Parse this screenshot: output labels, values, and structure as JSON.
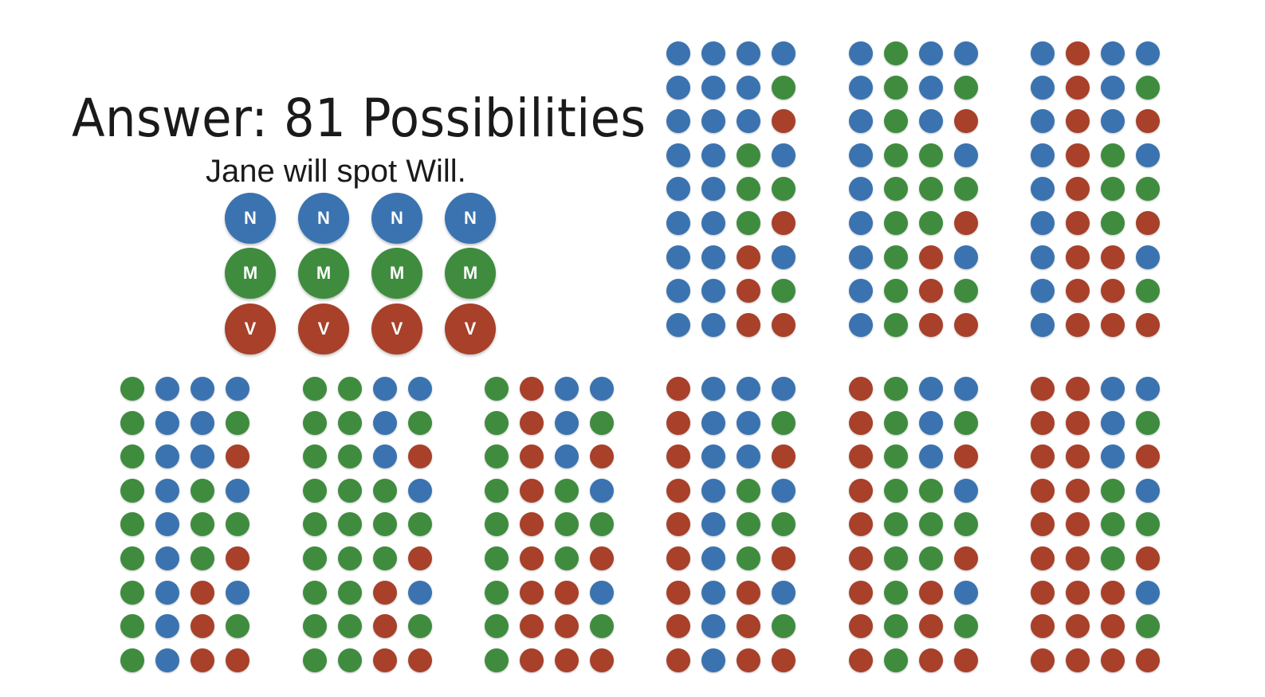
{
  "title": "Answer: 81 Possibilities",
  "subtitle": "Jane will spot Will.",
  "colors": {
    "N": "#3a73b0",
    "M": "#3f8c3f",
    "V": "#a8402a"
  },
  "legend": {
    "rows": [
      [
        "N",
        "N",
        "N",
        "N"
      ],
      [
        "M",
        "M",
        "M",
        "M"
      ],
      [
        "V",
        "V",
        "V",
        "V"
      ]
    ]
  },
  "combination_groups": [
    {
      "prefix": [
        "N",
        "N"
      ],
      "rows": [
        [
          "N",
          "N"
        ],
        [
          "N",
          "M"
        ],
        [
          "N",
          "V"
        ],
        [
          "M",
          "N"
        ],
        [
          "M",
          "M"
        ],
        [
          "M",
          "V"
        ],
        [
          "V",
          "N"
        ],
        [
          "V",
          "M"
        ],
        [
          "V",
          "V"
        ]
      ]
    },
    {
      "prefix": [
        "N",
        "M"
      ],
      "rows": [
        [
          "N",
          "N"
        ],
        [
          "N",
          "M"
        ],
        [
          "N",
          "V"
        ],
        [
          "M",
          "N"
        ],
        [
          "M",
          "M"
        ],
        [
          "M",
          "V"
        ],
        [
          "V",
          "N"
        ],
        [
          "V",
          "M"
        ],
        [
          "V",
          "V"
        ]
      ]
    },
    {
      "prefix": [
        "N",
        "V"
      ],
      "rows": [
        [
          "N",
          "N"
        ],
        [
          "N",
          "M"
        ],
        [
          "N",
          "V"
        ],
        [
          "M",
          "N"
        ],
        [
          "M",
          "M"
        ],
        [
          "M",
          "V"
        ],
        [
          "V",
          "N"
        ],
        [
          "V",
          "M"
        ],
        [
          "V",
          "V"
        ]
      ]
    },
    {
      "prefix": [
        "M",
        "N"
      ],
      "rows": [
        [
          "N",
          "N"
        ],
        [
          "N",
          "M"
        ],
        [
          "N",
          "V"
        ],
        [
          "M",
          "N"
        ],
        [
          "M",
          "M"
        ],
        [
          "M",
          "V"
        ],
        [
          "V",
          "N"
        ],
        [
          "V",
          "M"
        ],
        [
          "V",
          "V"
        ]
      ]
    },
    {
      "prefix": [
        "M",
        "M"
      ],
      "rows": [
        [
          "N",
          "N"
        ],
        [
          "N",
          "M"
        ],
        [
          "N",
          "V"
        ],
        [
          "M",
          "N"
        ],
        [
          "M",
          "M"
        ],
        [
          "M",
          "V"
        ],
        [
          "V",
          "N"
        ],
        [
          "V",
          "M"
        ],
        [
          "V",
          "V"
        ]
      ]
    },
    {
      "prefix": [
        "M",
        "V"
      ],
      "rows": [
        [
          "N",
          "N"
        ],
        [
          "N",
          "M"
        ],
        [
          "N",
          "V"
        ],
        [
          "M",
          "N"
        ],
        [
          "M",
          "M"
        ],
        [
          "M",
          "V"
        ],
        [
          "V",
          "N"
        ],
        [
          "V",
          "M"
        ],
        [
          "V",
          "V"
        ]
      ]
    },
    {
      "prefix": [
        "V",
        "N"
      ],
      "rows": [
        [
          "N",
          "N"
        ],
        [
          "N",
          "M"
        ],
        [
          "N",
          "V"
        ],
        [
          "M",
          "N"
        ],
        [
          "M",
          "M"
        ],
        [
          "M",
          "V"
        ],
        [
          "V",
          "N"
        ],
        [
          "V",
          "M"
        ],
        [
          "V",
          "V"
        ]
      ]
    },
    {
      "prefix": [
        "V",
        "M"
      ],
      "rows": [
        [
          "N",
          "N"
        ],
        [
          "N",
          "M"
        ],
        [
          "N",
          "V"
        ],
        [
          "M",
          "N"
        ],
        [
          "M",
          "M"
        ],
        [
          "M",
          "V"
        ],
        [
          "V",
          "N"
        ],
        [
          "V",
          "M"
        ],
        [
          "V",
          "V"
        ]
      ]
    },
    {
      "prefix": [
        "V",
        "V"
      ],
      "rows": [
        [
          "N",
          "N"
        ],
        [
          "N",
          "M"
        ],
        [
          "N",
          "V"
        ],
        [
          "M",
          "N"
        ],
        [
          "M",
          "M"
        ],
        [
          "M",
          "V"
        ],
        [
          "V",
          "N"
        ],
        [
          "V",
          "M"
        ],
        [
          "V",
          "V"
        ]
      ]
    }
  ]
}
